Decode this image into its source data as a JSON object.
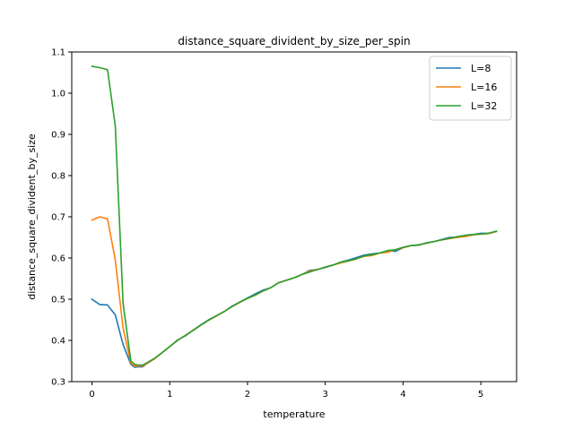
{
  "chart_data": {
    "type": "line",
    "title": "distance_square_divident_by_size_per_spin",
    "xlabel": "temperature",
    "ylabel": "distance_square_divident_by_size",
    "xlim": [
      -0.26,
      5.46
    ],
    "ylim": [
      0.3,
      1.1
    ],
    "xticks": [
      0,
      1,
      2,
      3,
      4,
      5
    ],
    "yticks": [
      0.3,
      0.4,
      0.5,
      0.6,
      0.7,
      0.8,
      0.9,
      1.0,
      1.1
    ],
    "ytick_labels": [
      "0.3",
      "0.4",
      "0.5",
      "0.6",
      "0.7",
      "0.8",
      "0.9",
      "1.0",
      "1.1"
    ],
    "grid": false,
    "legend_position": "top-right",
    "x": [
      0,
      0.1,
      0.2,
      0.3,
      0.4,
      0.5,
      0.55,
      0.6,
      0.65,
      0.7,
      0.8,
      0.9,
      1.0,
      1.1,
      1.2,
      1.3,
      1.4,
      1.5,
      1.6,
      1.7,
      1.8,
      1.9,
      2.0,
      2.1,
      2.2,
      2.3,
      2.4,
      2.5,
      2.6,
      2.7,
      2.8,
      2.9,
      3.0,
      3.1,
      3.2,
      3.3,
      3.4,
      3.5,
      3.6,
      3.7,
      3.8,
      3.9,
      4.0,
      4.1,
      4.2,
      4.3,
      4.4,
      4.5,
      4.6,
      4.7,
      4.8,
      4.9,
      5.0,
      5.1,
      5.2
    ],
    "series": [
      {
        "name": "L=8",
        "color": "#1f77b4",
        "values": [
          0.5,
          0.487,
          0.486,
          0.462,
          0.39,
          0.342,
          0.335,
          0.336,
          0.336,
          0.343,
          0.355,
          0.37,
          0.385,
          0.401,
          0.411,
          0.425,
          0.438,
          0.45,
          0.46,
          0.47,
          0.483,
          0.493,
          0.503,
          0.513,
          0.522,
          0.528,
          0.54,
          0.546,
          0.552,
          0.56,
          0.57,
          0.572,
          0.577,
          0.583,
          0.59,
          0.595,
          0.601,
          0.607,
          0.61,
          0.612,
          0.618,
          0.616,
          0.625,
          0.63,
          0.631,
          0.637,
          0.64,
          0.645,
          0.65,
          0.65,
          0.655,
          0.657,
          0.66,
          0.66,
          0.665
        ]
      },
      {
        "name": "L=16",
        "color": "#ff7f0e",
        "values": [
          0.692,
          0.7,
          0.695,
          0.595,
          0.43,
          0.345,
          0.338,
          0.338,
          0.338,
          0.343,
          0.355,
          0.37,
          0.385,
          0.4,
          0.412,
          0.425,
          0.437,
          0.449,
          0.459,
          0.47,
          0.482,
          0.492,
          0.502,
          0.51,
          0.52,
          0.528,
          0.54,
          0.546,
          0.552,
          0.56,
          0.568,
          0.572,
          0.578,
          0.583,
          0.588,
          0.593,
          0.598,
          0.604,
          0.606,
          0.612,
          0.614,
          0.62,
          0.625,
          0.63,
          0.632,
          0.636,
          0.64,
          0.644,
          0.647,
          0.65,
          0.652,
          0.656,
          0.658,
          0.659,
          0.664
        ]
      },
      {
        "name": "L=32",
        "color": "#2ca02c",
        "values": [
          1.065,
          1.062,
          1.057,
          0.92,
          0.49,
          0.35,
          0.342,
          0.34,
          0.34,
          0.345,
          0.356,
          0.37,
          0.385,
          0.4,
          0.412,
          0.424,
          0.437,
          0.449,
          0.46,
          0.47,
          0.482,
          0.493,
          0.502,
          0.51,
          0.52,
          0.528,
          0.54,
          0.546,
          0.552,
          0.56,
          0.566,
          0.572,
          0.578,
          0.583,
          0.59,
          0.593,
          0.598,
          0.605,
          0.608,
          0.612,
          0.618,
          0.62,
          0.626,
          0.63,
          0.632,
          0.636,
          0.64,
          0.644,
          0.648,
          0.652,
          0.655,
          0.657,
          0.658,
          0.66,
          0.665
        ]
      }
    ]
  }
}
